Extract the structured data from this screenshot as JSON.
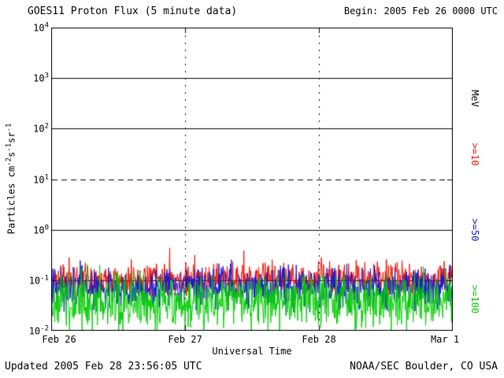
{
  "header": {
    "title": "GOES11 Proton Flux (5 minute data)",
    "begin": "Begin: 2005 Feb 26 0000 UTC"
  },
  "footer": {
    "updated": "Updated 2005 Feb 28 23:56:05 UTC",
    "source": "NOAA/SEC Boulder, CO USA"
  },
  "chart_data": {
    "type": "line",
    "title": "GOES11 Proton Flux (5 minute data)",
    "xlabel": "Universal Time",
    "ylabel": "Particles cm⁻²s⁻¹sr⁻¹",
    "ylabel_parts": [
      [
        "t",
        "Particles cm"
      ],
      [
        "sup",
        "-2"
      ],
      [
        "t",
        "s"
      ],
      [
        "sup",
        "-1"
      ],
      [
        "t",
        "sr"
      ],
      [
        "sup",
        "-1"
      ]
    ],
    "legend_unit": "MeV",
    "x_ticks": [
      "Feb 26",
      "Feb 27",
      "Feb 28",
      "Mar 1"
    ],
    "x_range_days": 3,
    "points_per_day": 288,
    "ylim": [
      0.01,
      10000
    ],
    "ylim_exponents": [
      -2,
      4
    ],
    "grid": "decade horizontal lines, dotted vertical day boundaries",
    "y_gridlines": [
      {
        "exp": 3,
        "style": "solid"
      },
      {
        "exp": 2,
        "style": "solid"
      },
      {
        "exp": 1,
        "style": "dashed"
      },
      {
        "exp": 0,
        "style": "solid"
      },
      {
        "exp": -1,
        "style": "solid"
      }
    ],
    "legend_position": "right-rotated",
    "series": [
      {
        "name": ">=10",
        "color": "#ee1100",
        "base_level": 0.105,
        "noise_dex": 0.15,
        "spike_prob": 0.06,
        "spike_dex": 0.35,
        "seed": 11
      },
      {
        "name": ">=50",
        "color": "#1616cf",
        "base_level": 0.072,
        "noise_dex": 0.2,
        "spike_prob": 0.02,
        "spike_dex": 0.2,
        "seed": 52
      },
      {
        "name": ">=100",
        "color": "#00cc00",
        "base_level": 0.038,
        "noise_dex": 0.26,
        "spike_prob": 0.02,
        "spike_dex": 0.25,
        "seed": 103
      }
    ]
  }
}
